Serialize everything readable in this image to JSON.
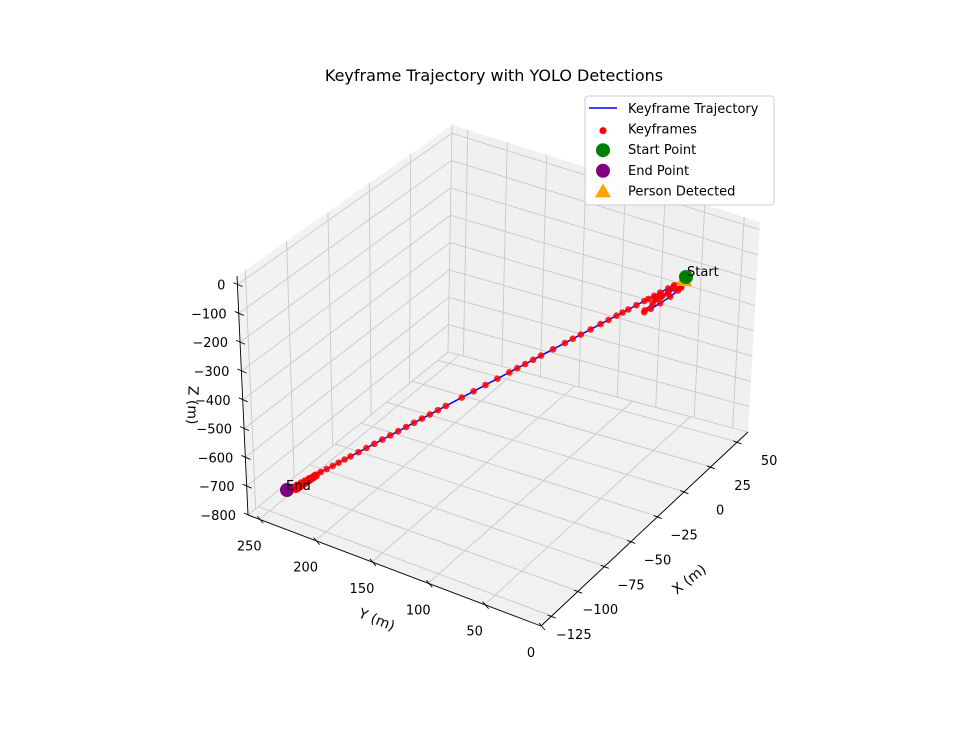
{
  "chart_data": {
    "type": "line3d",
    "title": "Keyframe Trajectory with YOLO Detections",
    "xlabel": "X (m)",
    "ylabel": "Y (m)",
    "zlabel": "Z (m)",
    "xlim": [
      -135,
      60
    ],
    "ylim": [
      0,
      260
    ],
    "zlim": [
      -800,
      30
    ],
    "x_ticks": [
      50,
      25,
      0,
      -25,
      -50,
      -75,
      -100,
      -125
    ],
    "x_tick_labels": [
      "50",
      "25",
      "0",
      "−25",
      "−50",
      "−75",
      "−100",
      "−125"
    ],
    "y_ticks": [
      250,
      200,
      150,
      100,
      50,
      0
    ],
    "y_tick_labels": [
      "250",
      "200",
      "150",
      "100",
      "50",
      "0"
    ],
    "z_ticks": [
      0,
      -100,
      -200,
      -300,
      -400,
      -500,
      -600,
      -700,
      -800
    ],
    "z_tick_labels": [
      "0",
      "−100",
      "−200",
      "−300",
      "−400",
      "−500",
      "−600",
      "−700",
      "−800"
    ],
    "start_label": "Start",
    "end_label": "End",
    "legend": [
      {
        "label": "Keyframe Trajectory",
        "marker": "line",
        "color": "#0000ff"
      },
      {
        "label": "Keyframes",
        "marker": "dot",
        "color": "#ff0000"
      },
      {
        "label": "Start Point",
        "marker": "circle",
        "color": "#008000"
      },
      {
        "label": "End Point",
        "marker": "circle",
        "color": "#800080"
      },
      {
        "label": "Person Detected",
        "marker": "triangle",
        "color": "#ffa500"
      }
    ],
    "colors": {
      "trajectory": "#0000ff",
      "keyframes": "#ff0000",
      "start": "#008000",
      "end": "#800080",
      "person": "#ffa500",
      "start_text": "#008000",
      "end_text": "#800080"
    },
    "trajectory": {
      "start": {
        "x": 48,
        "y": 3,
        "z": 0
      },
      "end": {
        "x": -120,
        "y": 240,
        "z": -710
      },
      "start_loop": [
        [
          48,
          3,
          0
        ],
        [
          45,
          8,
          -5
        ],
        [
          40,
          12,
          -12
        ],
        [
          36,
          16,
          -20
        ],
        [
          34,
          20,
          -30
        ],
        [
          36,
          22,
          -40
        ],
        [
          42,
          22,
          -48
        ],
        [
          48,
          20,
          -52
        ],
        [
          52,
          16,
          -50
        ],
        [
          54,
          12,
          -42
        ],
        [
          52,
          8,
          -32
        ],
        [
          48,
          6,
          -22
        ],
        [
          44,
          6,
          -14
        ],
        [
          40,
          8,
          -8
        ],
        [
          38,
          12,
          -6
        ],
        [
          38,
          16,
          -10
        ],
        [
          42,
          18,
          -18
        ],
        [
          46,
          18,
          -26
        ],
        [
          50,
          16,
          -30
        ],
        [
          52,
          12,
          -26
        ],
        [
          50,
          8,
          -18
        ],
        [
          46,
          6,
          -10
        ]
      ],
      "path_params_t": [
        0,
        0.025,
        0.04,
        0.06,
        0.075,
        0.09,
        0.1,
        0.12,
        0.14,
        0.155,
        0.17,
        0.19,
        0.21,
        0.235,
        0.26,
        0.28,
        0.3,
        0.33,
        0.36,
        0.38,
        0.4,
        0.42,
        0.44,
        0.47,
        0.5,
        0.53,
        0.56,
        0.6,
        0.62,
        0.64,
        0.66,
        0.68,
        0.7,
        0.72,
        0.74,
        0.76,
        0.78,
        0.8,
        0.82,
        0.84,
        0.855,
        0.87,
        0.885,
        0.9,
        0.915,
        0.93,
        0.945,
        0.955,
        0.965,
        0.975,
        0.985,
        0.993,
        1
      ]
    }
  }
}
